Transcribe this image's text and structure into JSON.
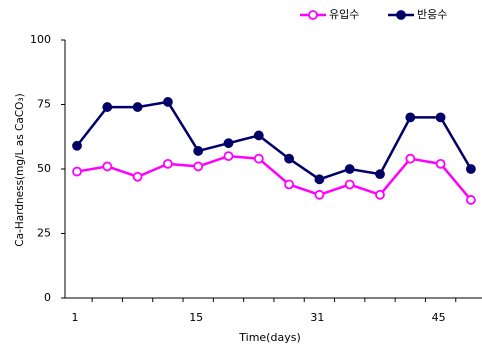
{
  "chart_data": {
    "type": "line",
    "x_label": "Time(days)",
    "y_label": "Ca-Hardness(mg/L as CaCO₃)",
    "categories": [
      "1",
      null,
      null,
      null,
      "15",
      null,
      null,
      null,
      "31",
      null,
      null,
      null,
      "45",
      null
    ],
    "series": [
      {
        "name": "유입수",
        "color": "#ff00ff",
        "marker": "hollow",
        "values": [
          49,
          51,
          47,
          52,
          51,
          55,
          54,
          44,
          40,
          44,
          40,
          54,
          52,
          38
        ]
      },
      {
        "name": "반응수",
        "color": "#000066",
        "marker": "filled",
        "values": [
          59,
          74,
          74,
          76,
          57,
          60,
          63,
          54,
          46,
          50,
          48,
          70,
          70,
          50
        ]
      }
    ],
    "ylim": [
      0,
      100
    ],
    "yticks": [
      0,
      25,
      50,
      75,
      100
    ],
    "grid": false
  }
}
